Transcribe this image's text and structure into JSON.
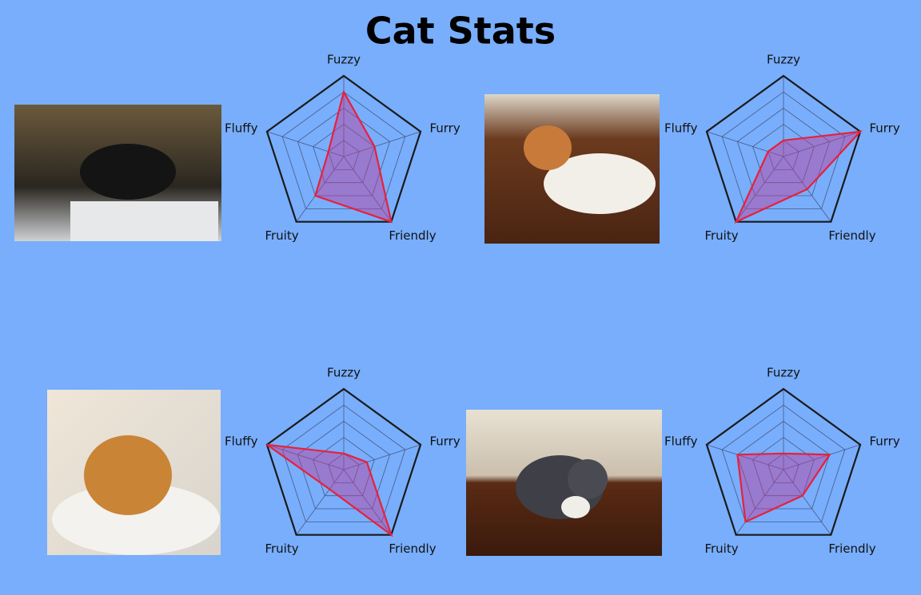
{
  "title": "Cat Stats",
  "chart_data": [
    {
      "type": "radar",
      "categories": [
        "Fuzzy",
        "Furry",
        "Friendly",
        "Fruity",
        "Fluffy"
      ],
      "values": [
        4,
        2,
        5,
        3,
        1
      ],
      "rlim": [
        0,
        5
      ],
      "rticks": [
        1,
        2,
        3,
        4,
        5
      ],
      "color": "#e8203a"
    },
    {
      "type": "radar",
      "categories": [
        "Fuzzy",
        "Furry",
        "Friendly",
        "Fruity",
        "Fluffy"
      ],
      "values": [
        1,
        5,
        2.5,
        5,
        1
      ],
      "rlim": [
        0,
        5
      ],
      "rticks": [
        1,
        2,
        3,
        4,
        5
      ],
      "color": "#e8203a"
    },
    {
      "type": "radar",
      "categories": [
        "Fuzzy",
        "Furry",
        "Friendly",
        "Fruity",
        "Fluffy"
      ],
      "values": [
        1,
        1.5,
        5,
        1.5,
        5
      ],
      "rlim": [
        0,
        5
      ],
      "rticks": [
        1,
        2,
        3,
        4,
        5
      ],
      "color": "#e8203a"
    },
    {
      "type": "radar",
      "categories": [
        "Fuzzy",
        "Furry",
        "Friendly",
        "Fruity",
        "Fluffy"
      ],
      "values": [
        1,
        3,
        2,
        4,
        3
      ],
      "rlim": [
        0,
        5
      ],
      "rticks": [
        1,
        2,
        3,
        4,
        5
      ],
      "color": "#e8203a"
    }
  ]
}
